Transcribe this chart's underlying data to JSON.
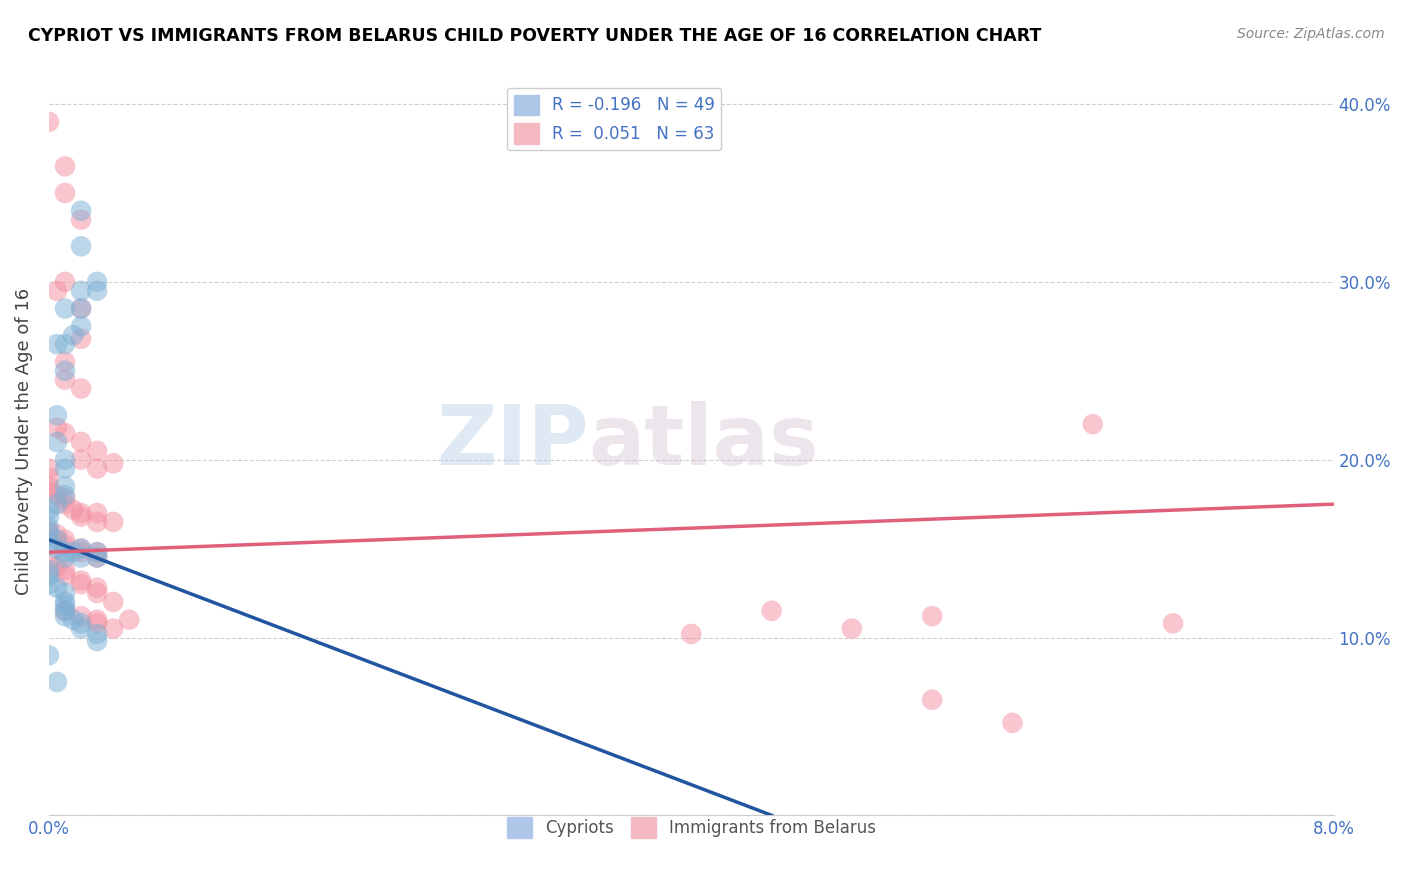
{
  "title": "CYPRIOT VS IMMIGRANTS FROM BELARUS CHILD POVERTY UNDER THE AGE OF 16 CORRELATION CHART",
  "source": "Source: ZipAtlas.com",
  "ylabel": "Child Poverty Under the Age of 16",
  "x_min": 0.0,
  "x_max": 0.08,
  "y_min": 0.0,
  "y_max": 0.42,
  "cypriot_color": "#7bafd4",
  "belarus_color": "#f48fa0",
  "cypriot_line_color": "#2155a0",
  "belarus_line_color": "#e0607a",
  "watermark_zip": "ZIP",
  "watermark_atlas": "atlas",
  "cypriot_line": [
    0.0,
    0.155,
    0.045,
    0.0
  ],
  "belarus_line": [
    0.0,
    0.148,
    0.08,
    0.175
  ],
  "cypriot_dash": [
    0.045,
    0.0,
    0.065,
    -0.046
  ],
  "cypriot_scatter": [
    [
      0.0005,
      0.265
    ],
    [
      0.002,
      0.34
    ],
    [
      0.002,
      0.32
    ],
    [
      0.003,
      0.3
    ],
    [
      0.003,
      0.295
    ],
    [
      0.001,
      0.285
    ],
    [
      0.002,
      0.285
    ],
    [
      0.002,
      0.295
    ],
    [
      0.001,
      0.265
    ],
    [
      0.0015,
      0.27
    ],
    [
      0.002,
      0.275
    ],
    [
      0.001,
      0.25
    ],
    [
      0.0005,
      0.225
    ],
    [
      0.0005,
      0.21
    ],
    [
      0.001,
      0.2
    ],
    [
      0.001,
      0.195
    ],
    [
      0.001,
      0.185
    ],
    [
      0.001,
      0.18
    ],
    [
      0.0005,
      0.175
    ],
    [
      0.0,
      0.172
    ],
    [
      0.0,
      0.168
    ],
    [
      0.0,
      0.162
    ],
    [
      0.0,
      0.158
    ],
    [
      0.0005,
      0.155
    ],
    [
      0.0,
      0.152
    ],
    [
      0.0005,
      0.15
    ],
    [
      0.001,
      0.148
    ],
    [
      0.001,
      0.145
    ],
    [
      0.0015,
      0.148
    ],
    [
      0.002,
      0.15
    ],
    [
      0.002,
      0.145
    ],
    [
      0.003,
      0.148
    ],
    [
      0.003,
      0.145
    ],
    [
      0.0,
      0.138
    ],
    [
      0.0,
      0.135
    ],
    [
      0.0,
      0.13
    ],
    [
      0.0005,
      0.128
    ],
    [
      0.001,
      0.125
    ],
    [
      0.001,
      0.12
    ],
    [
      0.001,
      0.118
    ],
    [
      0.001,
      0.115
    ],
    [
      0.001,
      0.112
    ],
    [
      0.0015,
      0.11
    ],
    [
      0.002,
      0.108
    ],
    [
      0.002,
      0.105
    ],
    [
      0.003,
      0.102
    ],
    [
      0.003,
      0.098
    ],
    [
      0.0,
      0.09
    ],
    [
      0.0005,
      0.075
    ]
  ],
  "belarus_scatter": [
    [
      0.0,
      0.39
    ],
    [
      0.001,
      0.365
    ],
    [
      0.001,
      0.35
    ],
    [
      0.002,
      0.335
    ],
    [
      0.0005,
      0.295
    ],
    [
      0.001,
      0.3
    ],
    [
      0.002,
      0.285
    ],
    [
      0.002,
      0.268
    ],
    [
      0.001,
      0.255
    ],
    [
      0.001,
      0.245
    ],
    [
      0.002,
      0.24
    ],
    [
      0.0005,
      0.218
    ],
    [
      0.001,
      0.215
    ],
    [
      0.002,
      0.21
    ],
    [
      0.002,
      0.2
    ],
    [
      0.003,
      0.205
    ],
    [
      0.003,
      0.195
    ],
    [
      0.004,
      0.198
    ],
    [
      0.0,
      0.195
    ],
    [
      0.0,
      0.19
    ],
    [
      0.0,
      0.185
    ],
    [
      0.0,
      0.182
    ],
    [
      0.0005,
      0.18
    ],
    [
      0.001,
      0.178
    ],
    [
      0.001,
      0.175
    ],
    [
      0.0015,
      0.172
    ],
    [
      0.002,
      0.17
    ],
    [
      0.002,
      0.168
    ],
    [
      0.003,
      0.17
    ],
    [
      0.003,
      0.165
    ],
    [
      0.004,
      0.165
    ],
    [
      0.0,
      0.16
    ],
    [
      0.0005,
      0.158
    ],
    [
      0.001,
      0.155
    ],
    [
      0.001,
      0.152
    ],
    [
      0.002,
      0.15
    ],
    [
      0.002,
      0.148
    ],
    [
      0.003,
      0.148
    ],
    [
      0.003,
      0.145
    ],
    [
      0.0,
      0.142
    ],
    [
      0.0005,
      0.14
    ],
    [
      0.001,
      0.138
    ],
    [
      0.001,
      0.135
    ],
    [
      0.002,
      0.132
    ],
    [
      0.002,
      0.13
    ],
    [
      0.003,
      0.128
    ],
    [
      0.003,
      0.125
    ],
    [
      0.004,
      0.12
    ],
    [
      0.001,
      0.115
    ],
    [
      0.002,
      0.112
    ],
    [
      0.003,
      0.11
    ],
    [
      0.003,
      0.108
    ],
    [
      0.004,
      0.105
    ],
    [
      0.005,
      0.11
    ],
    [
      0.045,
      0.115
    ],
    [
      0.055,
      0.112
    ],
    [
      0.065,
      0.22
    ],
    [
      0.07,
      0.108
    ],
    [
      0.04,
      0.102
    ],
    [
      0.05,
      0.105
    ],
    [
      0.06,
      0.052
    ],
    [
      0.055,
      0.065
    ]
  ]
}
